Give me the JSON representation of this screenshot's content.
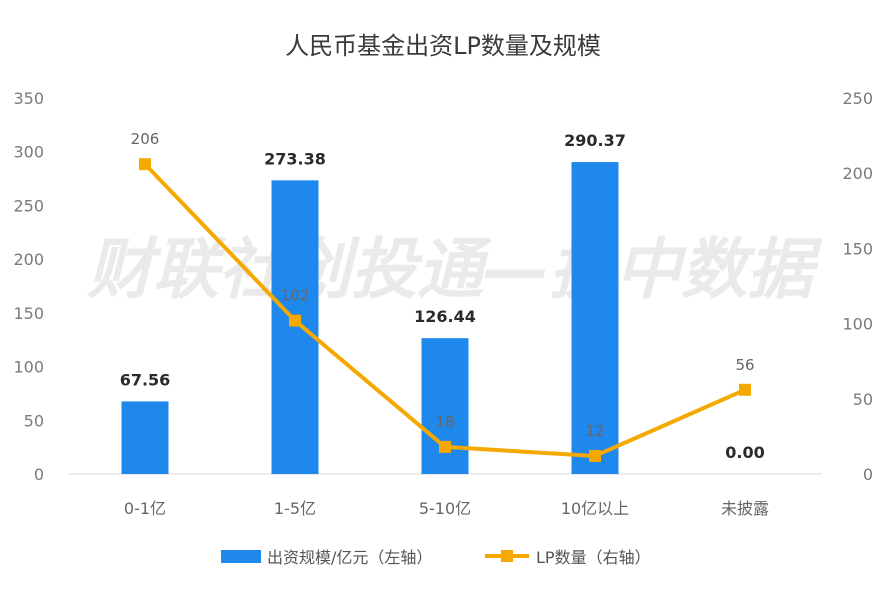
{
  "chart_data": {
    "type": "bar",
    "title": "人民币基金出资LP数量及规模",
    "categories": [
      "0-1亿",
      "1-5亿",
      "5-10亿",
      "10亿以上",
      "未披露"
    ],
    "series": [
      {
        "name": "出资规模/亿元（左轴）",
        "type": "bar",
        "axis": "left",
        "color": "#1f88ec",
        "values": [
          67.56,
          273.38,
          126.44,
          290.37,
          0.0
        ],
        "labels": [
          "67.56",
          "273.38",
          "126.44",
          "290.37",
          "0.00"
        ]
      },
      {
        "name": "LP数量（右轴）",
        "type": "line",
        "axis": "right",
        "color": "#f5a800",
        "values": [
          206,
          102,
          18,
          12,
          56
        ],
        "labels": [
          "206",
          "102",
          "18",
          "12",
          "56"
        ]
      }
    ],
    "y_left": {
      "min": 0,
      "max": 350,
      "step": 50,
      "ticks": [
        "0",
        "50",
        "100",
        "150",
        "200",
        "250",
        "300",
        "350"
      ]
    },
    "y_right": {
      "min": 0,
      "max": 250,
      "step": 50,
      "ticks": [
        "0",
        "50",
        "100",
        "150",
        "200",
        "250"
      ]
    },
    "grid": false,
    "legend_position": "bottom",
    "watermark": "财联社创投通—执中数据"
  }
}
